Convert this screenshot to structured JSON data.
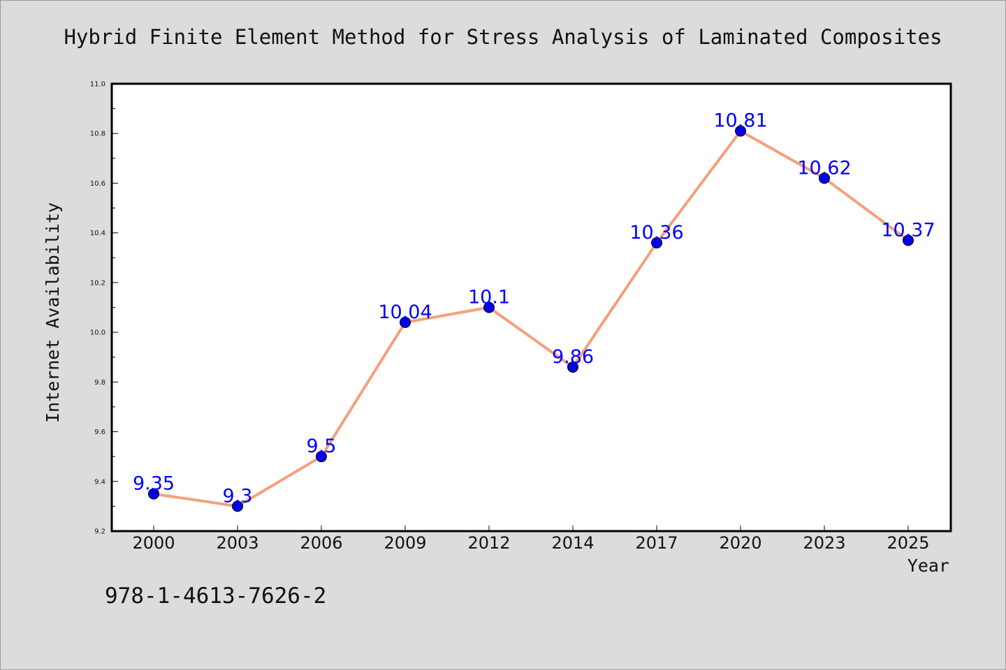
{
  "chart_data": {
    "type": "line",
    "title": "Hybrid Finite Element Method for Stress Analysis of Laminated Composites",
    "xlabel": "Year",
    "ylabel": "Internet Availability",
    "categories": [
      "2000",
      "2003",
      "2006",
      "2009",
      "2012",
      "2014",
      "2017",
      "2020",
      "2023",
      "2025"
    ],
    "series": [
      {
        "values": [
          9.35,
          9.3,
          9.5,
          10.04,
          10.1,
          9.86,
          10.36,
          10.81,
          10.62,
          10.37
        ],
        "labels": [
          "9.35",
          "9.3",
          "9.5",
          "10.04",
          "10.1",
          "9.86",
          "10.36",
          "10.81",
          "10.62",
          "10.37"
        ],
        "line_color": "#f4a07c",
        "marker_color": "#0000ee"
      }
    ],
    "ylim": [
      9.2,
      11.0
    ],
    "yticks": [
      "9.2",
      "9.4",
      "9.6",
      "9.8",
      "10.0",
      "10.2",
      "10.4",
      "10.6",
      "10.8",
      "11.0"
    ],
    "grid": false,
    "legend": "none"
  },
  "footer": {
    "isbn": "978-1-4613-7626-2"
  },
  "colors": {
    "background": "#dcdcdc",
    "plot_background": "#ffffff",
    "data_label": "#0000ff"
  }
}
